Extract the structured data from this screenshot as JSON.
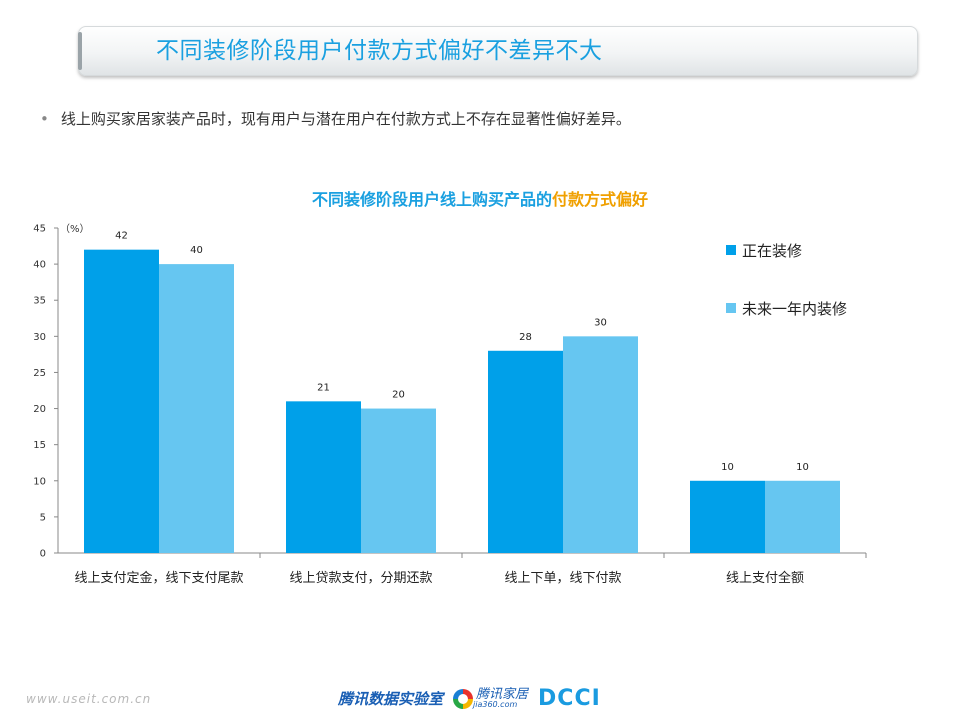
{
  "header": {
    "title": "不同装修阶段用户付款方式偏好不差异不大"
  },
  "bullet": {
    "symbol": "•",
    "text": "线上购买家居家装产品时，现有用户与潜在用户在付款方式上不存在显著性偏好差异。"
  },
  "footer": {
    "watermark": "www.useit.com.cn",
    "logo_lab": "腾讯数据实验室",
    "logo_home": "腾讯家居",
    "logo_home_sub": "jia360.com",
    "logo_dcci": "DCCI"
  },
  "chart_data": {
    "type": "bar",
    "title_parts": [
      {
        "text": "不同装修阶段用户线上购买产品的",
        "color": "#1aa0e0"
      },
      {
        "text": "付款方式偏好",
        "color": "#f0a000"
      }
    ],
    "unit_label": "（%）",
    "categories": [
      "线上支付定金，线下支付尾款",
      "线上贷款支付，分期还款",
      "线上下单，线下付款",
      "线上支付全额"
    ],
    "series": [
      {
        "name": "正在装修",
        "color": "#00a0e9",
        "values": [
          42,
          21,
          28,
          10
        ],
        "labels": [
          "42",
          "21",
          "28",
          "10"
        ]
      },
      {
        "name": "未来一年内装修",
        "color": "#66c6f1",
        "values": [
          40,
          20,
          30,
          10
        ],
        "labels": [
          "40",
          "20",
          "30",
          "10"
        ]
      }
    ],
    "ylim": [
      0,
      45
    ],
    "yticks": [
      0,
      5,
      10,
      15,
      20,
      25,
      30,
      35,
      40,
      45
    ],
    "grid": false,
    "legend_position": "top-right"
  }
}
